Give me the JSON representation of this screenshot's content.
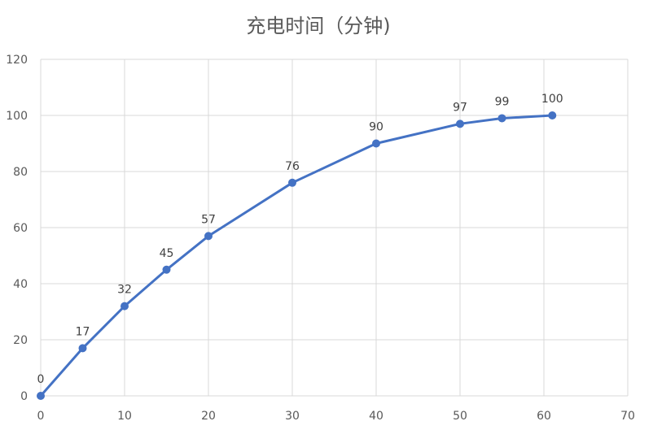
{
  "chart_data": {
    "type": "line",
    "title": "充电时间（分钟)",
    "xlabel": "",
    "ylabel": "",
    "xlim": [
      0,
      70
    ],
    "ylim": [
      0,
      120
    ],
    "xticks": [
      0,
      10,
      20,
      30,
      40,
      50,
      60,
      70
    ],
    "yticks": [
      0,
      20,
      40,
      60,
      80,
      100,
      120
    ],
    "grid": true,
    "legend": "none",
    "series": [
      {
        "color": "#4472c4",
        "x": [
          0,
          5,
          10,
          15,
          20,
          30,
          40,
          50,
          55,
          61
        ],
        "y": [
          0,
          17,
          32,
          45,
          57,
          76,
          90,
          97,
          99,
          100
        ],
        "labels": [
          "0",
          "17",
          "32",
          "45",
          "57",
          "76",
          "90",
          "97",
          "99",
          "100"
        ]
      }
    ]
  }
}
